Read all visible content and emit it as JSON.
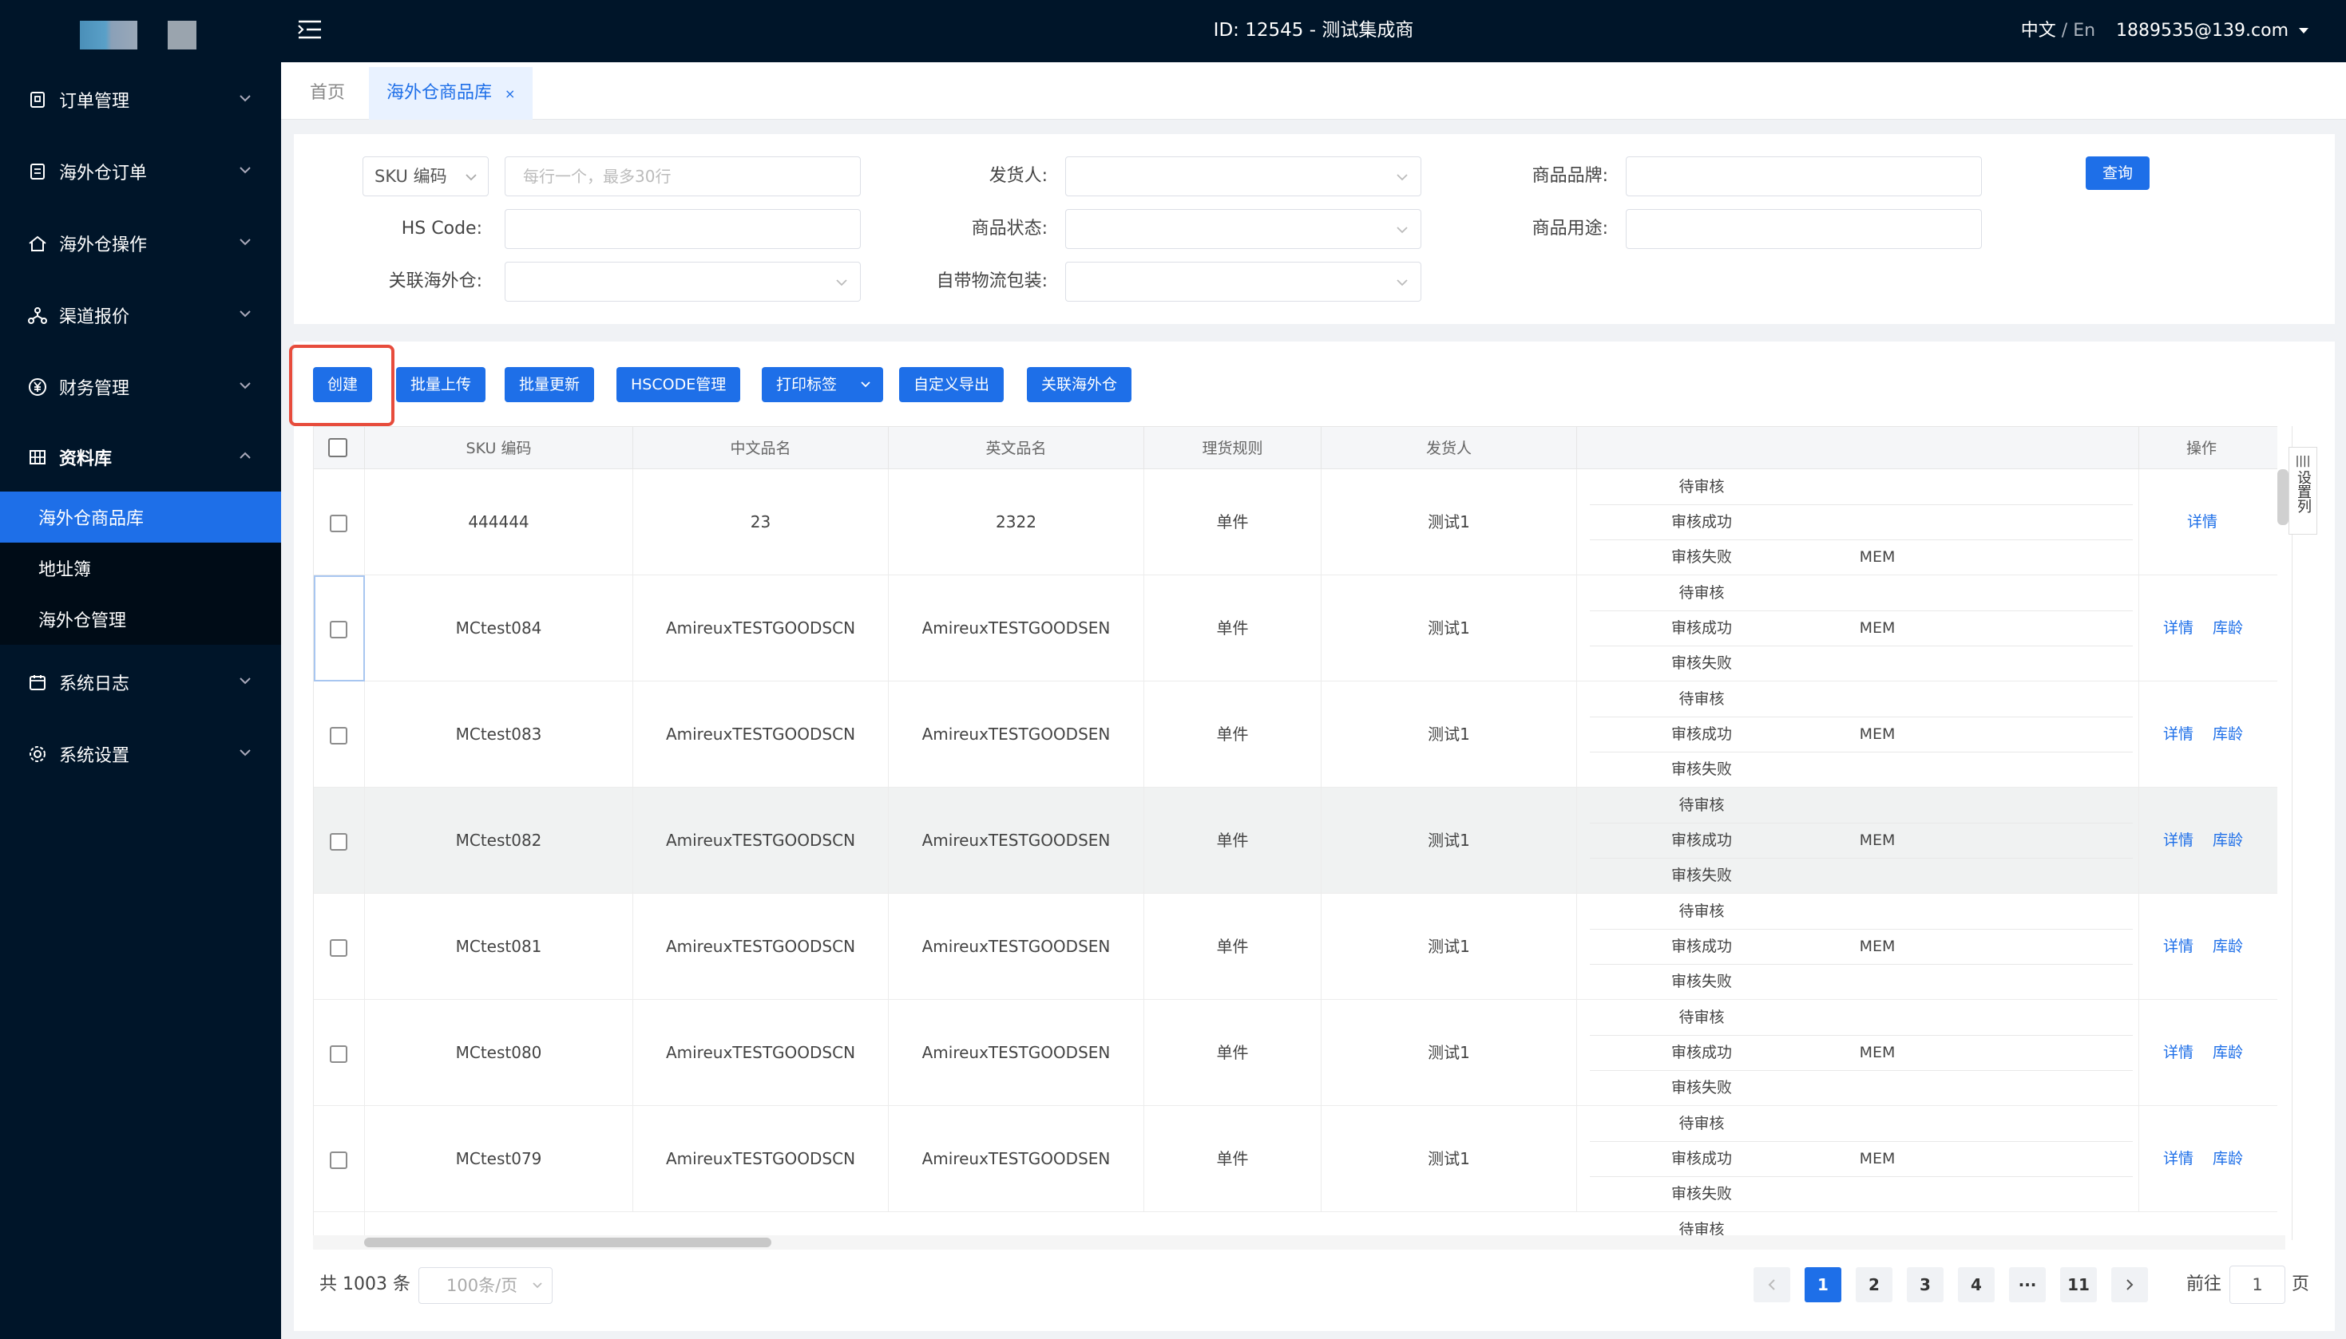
{
  "topbar": {
    "title": "ID: 12545 - 测试集成商",
    "lang_zh": "中文",
    "lang_sep": " / ",
    "lang_en": "En",
    "user": "1889535@139.com"
  },
  "sidebar": {
    "items": [
      {
        "label": "订单管理"
      },
      {
        "label": "海外仓订单"
      },
      {
        "label": "海外仓操作"
      },
      {
        "label": "渠道报价"
      },
      {
        "label": "财务管理"
      },
      {
        "label": "资料库"
      },
      {
        "label": "系统日志"
      },
      {
        "label": "系统设置"
      }
    ],
    "sub_items": [
      {
        "label": "海外仓商品库"
      },
      {
        "label": "地址簿"
      },
      {
        "label": "海外仓管理"
      }
    ]
  },
  "tabs": [
    {
      "label": "首页"
    },
    {
      "label": "海外仓商品库",
      "close": "×"
    }
  ],
  "filter": {
    "sku_select": "SKU 编码",
    "sku_placeholder": "每行一个，最多30行",
    "hs_code_label": "HS Code:",
    "warehouse_label": "关联海外仓:",
    "shipper_label": "发货人:",
    "status_label": "商品状态:",
    "packaging_label": "自带物流包装:",
    "brand_label": "商品品牌:",
    "usage_label": "商品用途:",
    "query_button": "查询"
  },
  "toolbar": {
    "create": "创建",
    "batch_upload": "批量上传",
    "batch_update": "批量更新",
    "hscode_manage": "HSCODE管理",
    "print_label": "打印标签",
    "custom_export": "自定义导出",
    "link_warehouse": "关联海外仓"
  },
  "table": {
    "headers": {
      "sku": "SKU 编码",
      "cn_name": "中文品名",
      "en_name": "英文品名",
      "rule": "理货规则",
      "shipper": "发货人",
      "ops": "操作"
    },
    "status_labels": [
      "待审核",
      "审核成功",
      "审核失败"
    ],
    "mem": "MEM",
    "detail": "详情",
    "age": "库龄",
    "rows": [
      {
        "sku": "444444",
        "cn": "23",
        "en": "2322",
        "rule": "单件",
        "shipper": "测试1"
      },
      {
        "sku": "MCtest084",
        "cn": "AmireuxTESTGOODSCN",
        "en": "AmireuxTESTGOODSEN",
        "rule": "单件",
        "shipper": "测试1"
      },
      {
        "sku": "MCtest083",
        "cn": "AmireuxTESTGOODSCN",
        "en": "AmireuxTESTGOODSEN",
        "rule": "单件",
        "shipper": "测试1"
      },
      {
        "sku": "MCtest082",
        "cn": "AmireuxTESTGOODSCN",
        "en": "AmireuxTESTGOODSEN",
        "rule": "单件",
        "shipper": "测试1"
      },
      {
        "sku": "MCtest081",
        "cn": "AmireuxTESTGOODSCN",
        "en": "AmireuxTESTGOODSEN",
        "rule": "单件",
        "shipper": "测试1"
      },
      {
        "sku": "MCtest080",
        "cn": "AmireuxTESTGOODSCN",
        "en": "AmireuxTESTGOODSEN",
        "rule": "单件",
        "shipper": "测试1"
      },
      {
        "sku": "MCtest079",
        "cn": "AmireuxTESTGOODSCN",
        "en": "AmireuxTESTGOODSEN",
        "rule": "单件",
        "shipper": "测试1"
      }
    ],
    "partial_status": "待审核",
    "settings_tab": "设置列"
  },
  "pagination": {
    "total": "共 1003 条",
    "page_size": "100条/页",
    "pages": [
      "1",
      "2",
      "3",
      "4",
      "···",
      "11"
    ],
    "goto_label": "前往",
    "goto_value": "1",
    "page_suffix": "页"
  },
  "colors": {
    "primary": "#1e6fe8",
    "sidebar_bg": "#001529",
    "highlight_border": "#e74c3c"
  }
}
